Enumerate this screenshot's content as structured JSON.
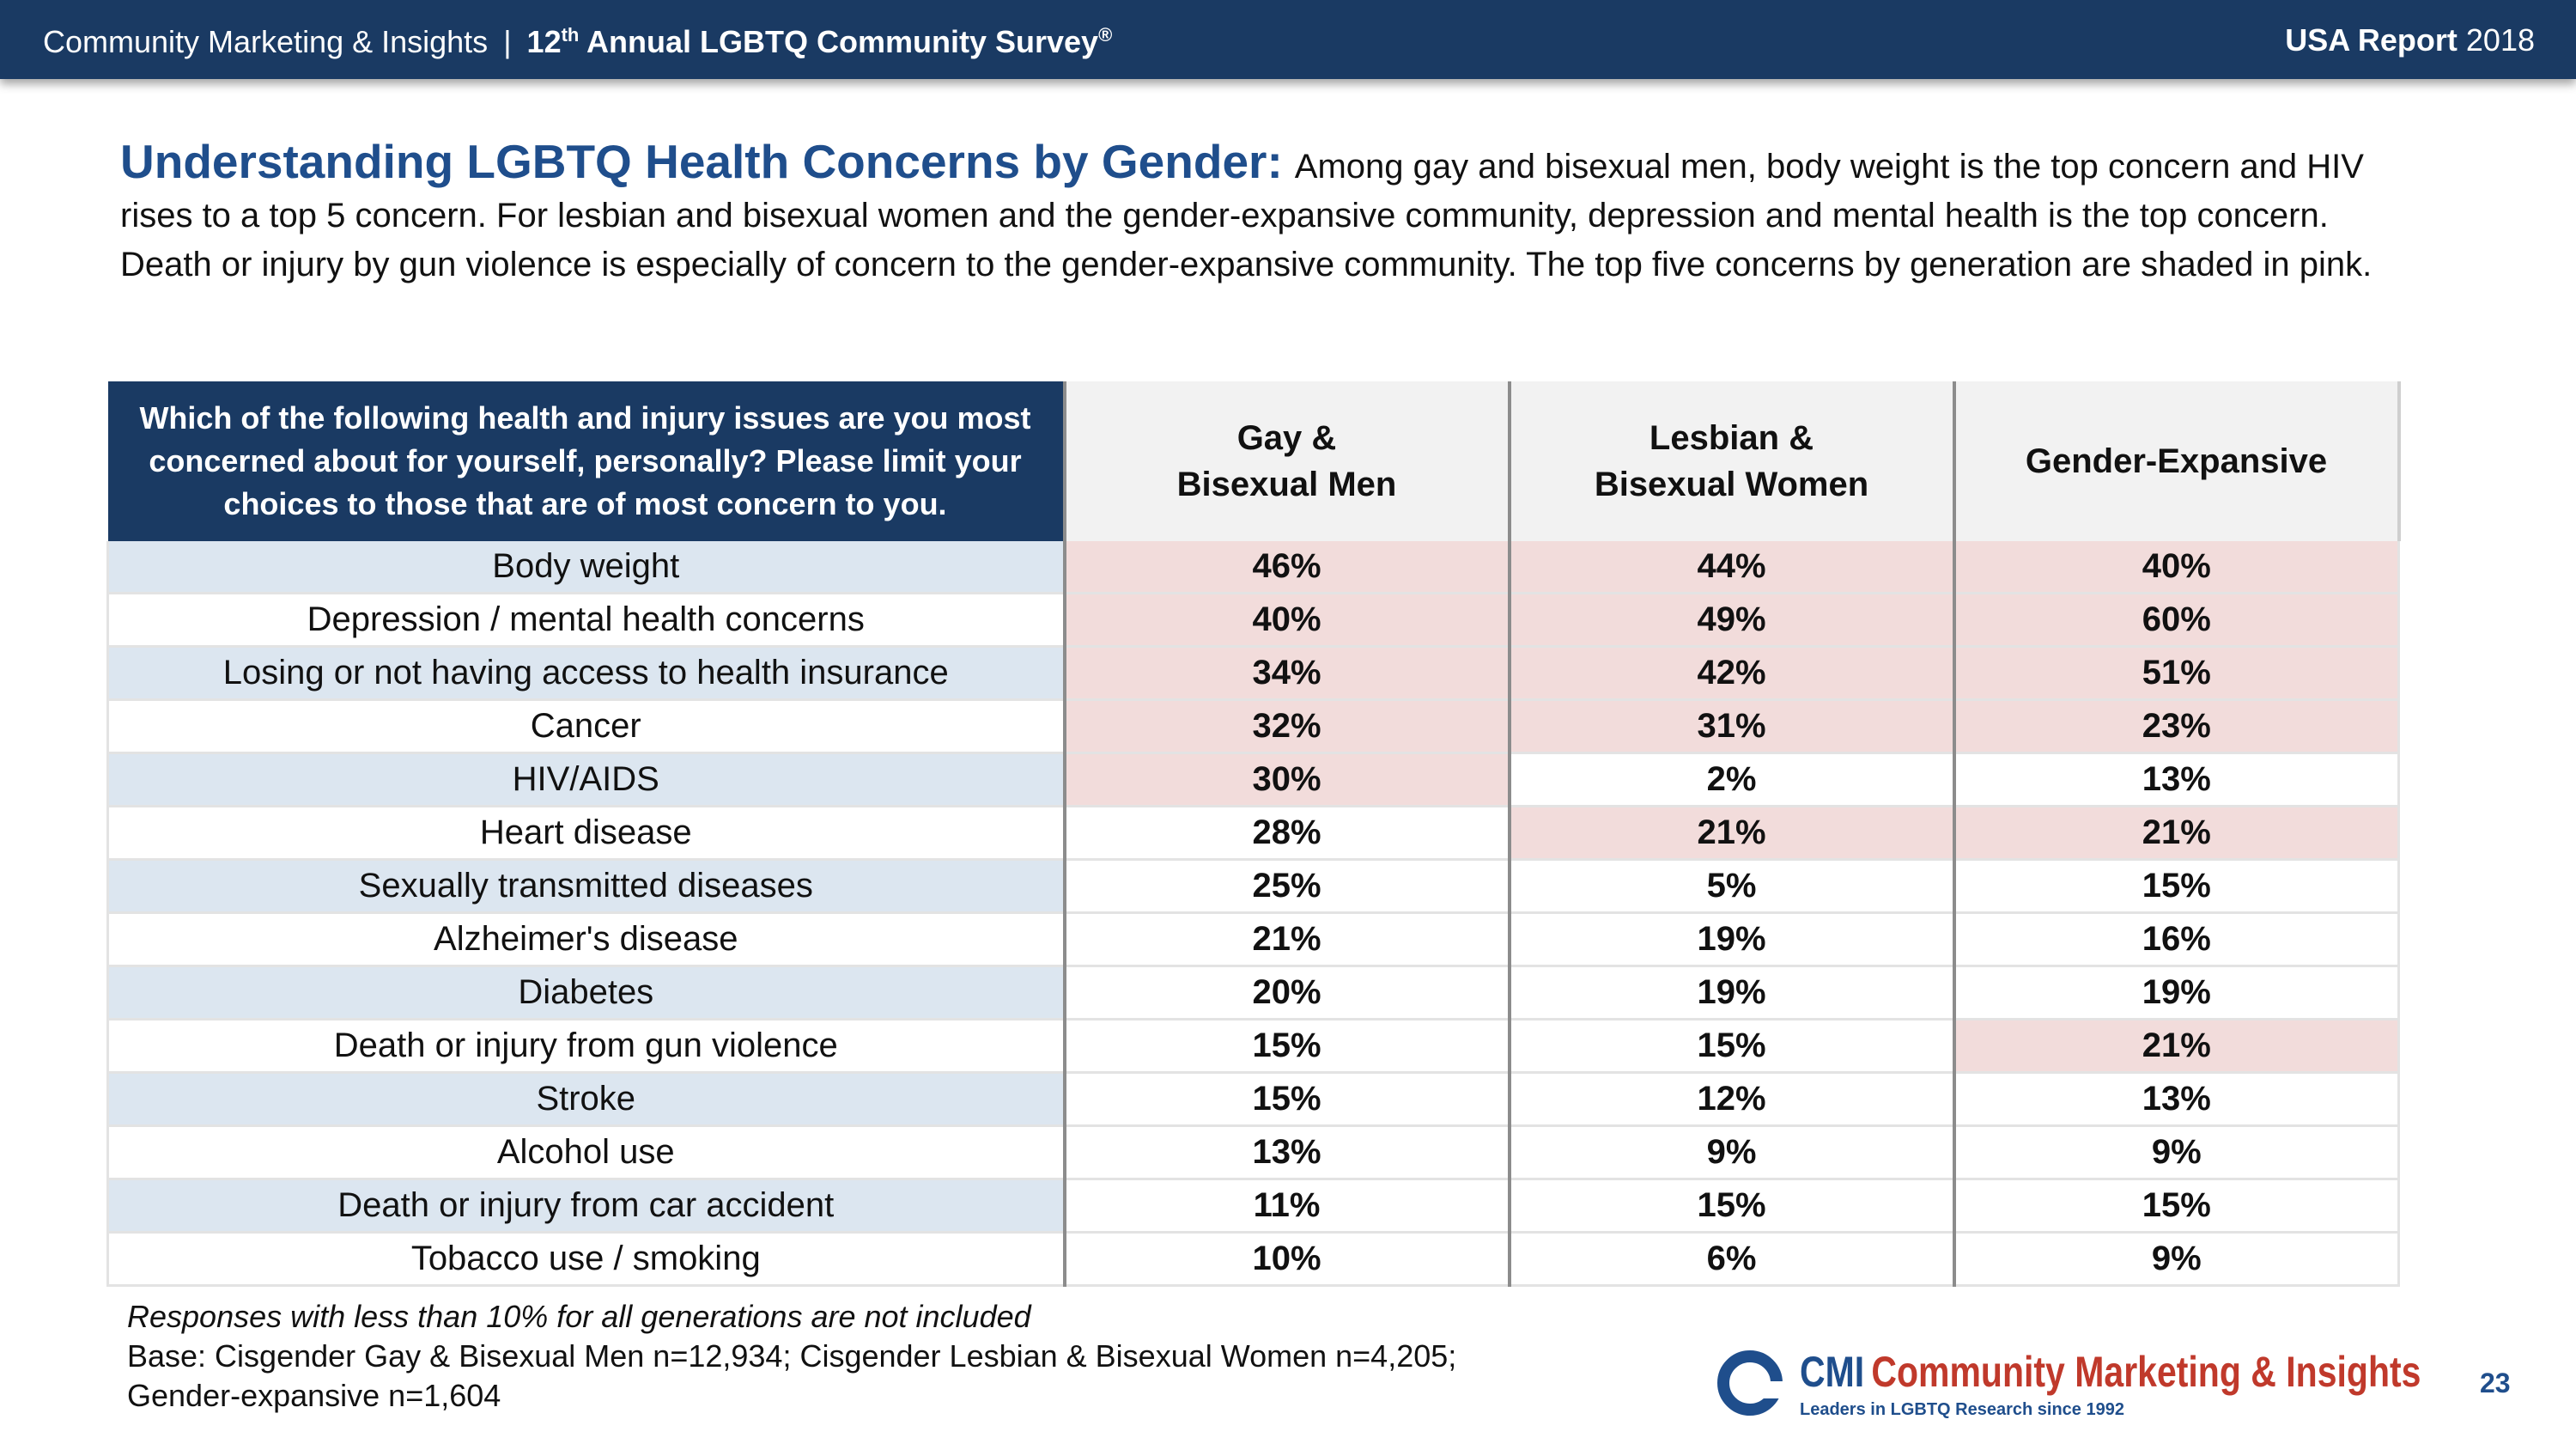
{
  "header": {
    "org": "Community Marketing & Insights",
    "separator": "|",
    "survey_prefix": "12",
    "survey_sup": "th",
    "survey_rest": " Annual LGBTQ Community Survey",
    "survey_mark": "®",
    "report_label": "USA Report",
    "report_year": "2018"
  },
  "intro": {
    "headline": "Understanding LGBTQ Health Concerns by Gender:",
    "body": "Among gay and bisexual men, body weight is the top concern and HIV rises to a top 5 concern. For lesbian and bisexual women and the gender-expansive community, depression and mental health is the top concern. Death or injury by gun violence is especially of concern to the gender-expansive community. The top five concerns by generation are shaded in pink."
  },
  "table": {
    "question": "Which of the following health and injury issues are you most concerned about for yourself, personally? Please limit your choices to those that are of most concern to you.",
    "columns": [
      {
        "line1": "Gay &",
        "line2": "Bisexual Men"
      },
      {
        "line1": "Lesbian &",
        "line2": "Bisexual Women"
      },
      {
        "line1": "Gender-Expansive",
        "line2": ""
      }
    ],
    "highlight_color": "#f2dcdb",
    "rows": [
      {
        "label": "Body weight",
        "values": [
          "46%",
          "44%",
          "40%"
        ],
        "top5": [
          true,
          true,
          true
        ]
      },
      {
        "label": "Depression / mental health concerns",
        "values": [
          "40%",
          "49%",
          "60%"
        ],
        "top5": [
          true,
          true,
          true
        ]
      },
      {
        "label": "Losing or not having access to health insurance",
        "values": [
          "34%",
          "42%",
          "51%"
        ],
        "top5": [
          true,
          true,
          true
        ]
      },
      {
        "label": "Cancer",
        "values": [
          "32%",
          "31%",
          "23%"
        ],
        "top5": [
          true,
          true,
          true
        ]
      },
      {
        "label": "HIV/AIDS",
        "values": [
          "30%",
          "2%",
          "13%"
        ],
        "top5": [
          true,
          false,
          false
        ]
      },
      {
        "label": "Heart disease",
        "values": [
          "28%",
          "21%",
          "21%"
        ],
        "top5": [
          false,
          true,
          true
        ]
      },
      {
        "label": "Sexually transmitted diseases",
        "values": [
          "25%",
          "5%",
          "15%"
        ],
        "top5": [
          false,
          false,
          false
        ]
      },
      {
        "label": "Alzheimer's disease",
        "values": [
          "21%",
          "19%",
          "16%"
        ],
        "top5": [
          false,
          false,
          false
        ]
      },
      {
        "label": "Diabetes",
        "values": [
          "20%",
          "19%",
          "19%"
        ],
        "top5": [
          false,
          false,
          false
        ]
      },
      {
        "label": "Death or injury from gun violence",
        "values": [
          "15%",
          "15%",
          "21%"
        ],
        "top5": [
          false,
          false,
          true
        ]
      },
      {
        "label": "Stroke",
        "values": [
          "15%",
          "12%",
          "13%"
        ],
        "top5": [
          false,
          false,
          false
        ]
      },
      {
        "label": "Alcohol use",
        "values": [
          "13%",
          "9%",
          "9%"
        ],
        "top5": [
          false,
          false,
          false
        ]
      },
      {
        "label": "Death or injury from car accident",
        "values": [
          "11%",
          "15%",
          "15%"
        ],
        "top5": [
          false,
          false,
          false
        ]
      },
      {
        "label": "Tobacco use / smoking",
        "values": [
          "10%",
          "6%",
          "9%"
        ],
        "top5": [
          false,
          false,
          false
        ]
      }
    ]
  },
  "notes": {
    "exclusion": "Responses with less than 10% for all generations are not included",
    "base_line1": "Base: Cisgender Gay & Bisexual Men n=12,934; Cisgender Lesbian & Bisexual Women n=4,205;",
    "base_line2": "Gender-expansive n=1,604"
  },
  "logo": {
    "abbr": "CMI",
    "name": "Community Marketing & Insights",
    "tagline": "Leaders in LGBTQ Research since 1992",
    "icon": "cmi-logo-ring-icon"
  },
  "page_number": "23"
}
